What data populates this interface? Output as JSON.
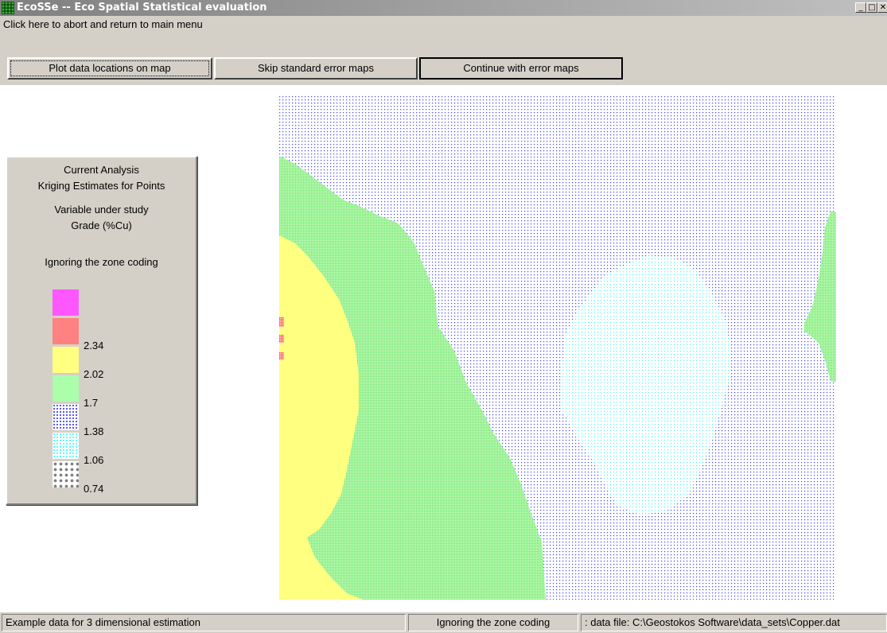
{
  "window": {
    "title": "EcoSSe -- Eco Spatial Statistical evaluation",
    "min_glyph": "_",
    "max_glyph": "□",
    "close_glyph": "✕"
  },
  "menu": {
    "abort_label": "Click here to abort and return to main menu"
  },
  "toolbar": {
    "plot_label": "Plot data locations on map",
    "skip_label": "Skip standard error maps",
    "continue_label": "Continue with error maps"
  },
  "legend": {
    "analysis_heading": "Current Analysis",
    "analysis_value": "Kriging Estimates for Points",
    "variable_heading": "Variable under study",
    "variable_value": "Grade (%Cu)",
    "zone_text": "Ignoring the zone coding",
    "classes": [
      {
        "value": "",
        "color": "#ff00ff"
      },
      {
        "value": "2.34",
        "color": "#ff4040"
      },
      {
        "value": "2.02",
        "color": "#ffff80"
      },
      {
        "value": "1.7",
        "color": "#80ff80"
      },
      {
        "value": "1.38",
        "color": "#4040ff"
      },
      {
        "value": "1.06",
        "color": "#40ffff"
      },
      {
        "value": "0.74",
        "color": "#808080"
      }
    ]
  },
  "status": {
    "dataset": "Example data for 3 dimensional estimation",
    "zone": "Ignoring the zone coding",
    "file": ": data file: C:\\Geostokos Software\\data_sets\\Copper.dat"
  }
}
